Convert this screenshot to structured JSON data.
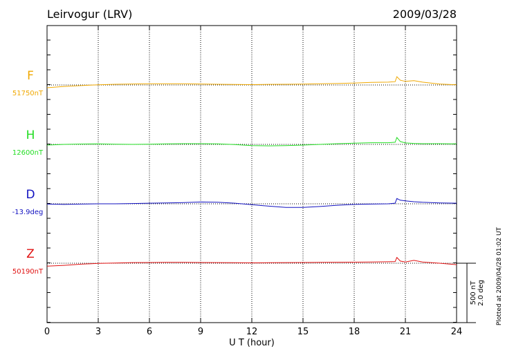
{
  "chart_data": {
    "type": "line",
    "title": "Leirvogur (LRV)",
    "date": "2009/03/28",
    "x_label": "U T (hour)",
    "note": "Plotted at 2009/04/28 01:02 UT",
    "xlim": [
      0,
      24
    ],
    "xticks": [
      0,
      3,
      6,
      9,
      12,
      15,
      18,
      21,
      24
    ],
    "grid": true,
    "scales": [
      {
        "value": 500,
        "label": "500 nT"
      },
      {
        "value": 2.0,
        "label": "2.0 deg"
      }
    ],
    "x": [
      0,
      1,
      2,
      3,
      4,
      5,
      6,
      7,
      8,
      9,
      10,
      11,
      12,
      13,
      14,
      15,
      16,
      17,
      18,
      19,
      20,
      20.4,
      20.5,
      20.7,
      21,
      21.5,
      22,
      23,
      24
    ],
    "series": [
      {
        "name": "F",
        "color": "#f0a800",
        "scale": 0,
        "baseline": {
          "value": 51750,
          "label": "51750nT"
        },
        "values": [
          51727,
          51738,
          51745,
          51752,
          51756,
          51758,
          51760,
          51760,
          51760,
          51758,
          51756,
          51754,
          51753,
          51755,
          51756,
          51757,
          51760,
          51762,
          51766,
          51772,
          51774,
          51778,
          51820,
          51790,
          51780,
          51786,
          51774,
          51758,
          51752
        ]
      },
      {
        "name": "H",
        "color": "#22dd22",
        "scale": 0,
        "baseline": {
          "value": 12600,
          "label": "12600nT"
        },
        "values": [
          12594,
          12600,
          12603,
          12604,
          12602,
          12600,
          12602,
          12604,
          12606,
          12606,
          12604,
          12598,
          12590,
          12588,
          12590,
          12594,
          12600,
          12606,
          12610,
          12614,
          12614,
          12618,
          12658,
          12624,
          12612,
          12608,
          12606,
          12606,
          12604
        ]
      },
      {
        "name": "D",
        "color": "#1010c0",
        "scale": 1,
        "baseline": {
          "value": -13.9,
          "label": "-13.9deg"
        },
        "values": [
          -13.91,
          -13.92,
          -13.91,
          -13.9,
          -13.9,
          -13.89,
          -13.88,
          -13.87,
          -13.86,
          -13.84,
          -13.85,
          -13.88,
          -13.93,
          -13.98,
          -14.02,
          -14.02,
          -13.99,
          -13.95,
          -13.92,
          -13.91,
          -13.9,
          -13.88,
          -13.72,
          -13.78,
          -13.8,
          -13.83,
          -13.85,
          -13.87,
          -13.88
        ]
      },
      {
        "name": "Z",
        "color": "#e01010",
        "scale": 0,
        "baseline": {
          "value": 50190,
          "label": "50190nT"
        },
        "values": [
          50165,
          50172,
          50182,
          50188,
          50192,
          50195,
          50196,
          50197,
          50197,
          50196,
          50195,
          50194,
          50193,
          50194,
          50195,
          50196,
          50197,
          50198,
          50199,
          50200,
          50202,
          50204,
          50238,
          50208,
          50200,
          50214,
          50200,
          50190,
          50178
        ]
      }
    ]
  }
}
